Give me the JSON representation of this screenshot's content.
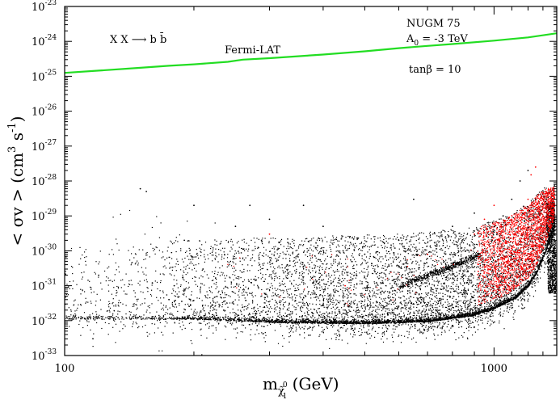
{
  "chart_data": {
    "type": "scatter",
    "x_scale": "log",
    "y_scale": "log",
    "xlim": [
      100,
      1400
    ],
    "ylim": [
      1e-33,
      1e-23
    ],
    "xlabel": {
      "base": "m",
      "sub": "χ̃",
      "subsup": "0",
      "subsub": "1",
      "unit": " (GeV)"
    },
    "ylabel": {
      "main": "< σv > (cm",
      "sup1": "3",
      "mid": " s",
      "sup2": "-1",
      "end": ")"
    },
    "x_ticks": [
      {
        "value": 100,
        "label": "100"
      },
      {
        "value": 1000,
        "label": "1000"
      }
    ],
    "y_ticks": [
      {
        "exp": -33,
        "base": "10",
        "label_exp": "-33"
      },
      {
        "exp": -32,
        "base": "10",
        "label_exp": "-32"
      },
      {
        "exp": -31,
        "base": "10",
        "label_exp": "-31"
      },
      {
        "exp": -30,
        "base": "10",
        "label_exp": "-30"
      },
      {
        "exp": -29,
        "base": "10",
        "label_exp": "-29"
      },
      {
        "exp": -28,
        "base": "10",
        "label_exp": "-28"
      },
      {
        "exp": -27,
        "base": "10",
        "label_exp": "-27"
      },
      {
        "exp": -26,
        "base": "10",
        "label_exp": "-26"
      },
      {
        "exp": -25,
        "base": "10",
        "label_exp": "-25"
      },
      {
        "exp": -24,
        "base": "10",
        "label_exp": "-24"
      },
      {
        "exp": -23,
        "base": "10",
        "label_exp": "-23"
      }
    ],
    "annotations": {
      "process": "X X ⟶ b b̄",
      "fermi": "Fermi-LAT",
      "model": "NUGM 75",
      "a0_base": "A",
      "a0_sub": "0",
      "a0_rest": " = -3 TeV",
      "tanbeta": "tanβ = 10"
    },
    "series": [
      {
        "name": "Fermi-LAT limit",
        "kind": "line",
        "color": "#22dd22",
        "x": [
          100,
          120,
          150,
          175,
          200,
          240,
          260,
          300,
          400,
          500,
          600,
          700,
          800,
          1000,
          1200,
          1400
        ],
        "y": [
          1.25e-25,
          1.45e-25,
          1.75e-25,
          2e-25,
          2.2e-25,
          2.6e-25,
          3e-25,
          3.3e-25,
          4.2e-25,
          5.2e-25,
          6.4e-25,
          7.4e-25,
          8.4e-25,
          1.05e-24,
          1.3e-24,
          1.7e-24
        ]
      },
      {
        "name": "scan points",
        "kind": "scatter",
        "color": "#000000",
        "x": [
          120,
          150,
          155,
          160,
          175,
          180,
          190,
          200,
          210,
          230,
          250,
          270,
          300,
          330,
          360,
          400,
          450,
          500,
          550,
          600,
          650,
          700,
          750,
          800,
          850,
          900,
          950,
          1000,
          1050,
          1100,
          1150,
          1200,
          1250,
          1300,
          1320
        ],
        "y": [
          2e-31,
          6e-29,
          5e-29,
          1.2e-31,
          4e-32,
          1e-31,
          2e-30,
          2e-29,
          3e-31,
          1e-32,
          5e-30,
          2e-29,
          8e-30,
          4e-31,
          2e-29,
          5e-30,
          2e-32,
          8e-31,
          1.5e-32,
          2e-30,
          3e-29,
          6e-31,
          1.5e-32,
          5e-30,
          2e-31,
          1.2e-29,
          4e-31,
          5e-30,
          1e-29,
          3e-29,
          1e-28,
          2e-28,
          3e-29,
          1e-30,
          1.5e-30
        ]
      },
      {
        "name": "highlighted points",
        "kind": "scatter",
        "color": "#ff0000",
        "x": [
          300,
          450,
          700,
          900,
          920,
          950,
          980,
          1000,
          1050,
          1100,
          1150,
          1200,
          1220,
          1250,
          1270
        ],
        "y": [
          3e-30,
          1e-31,
          8e-31,
          3e-30,
          1e-31,
          8e-30,
          3e-31,
          2e-29,
          6e-31,
          8e-30,
          1e-30,
          3e-29,
          1.5e-28,
          2.5e-28,
          4e-29
        ]
      }
    ],
    "texture": {
      "black_points": 9000,
      "red_points": 2400
    }
  }
}
